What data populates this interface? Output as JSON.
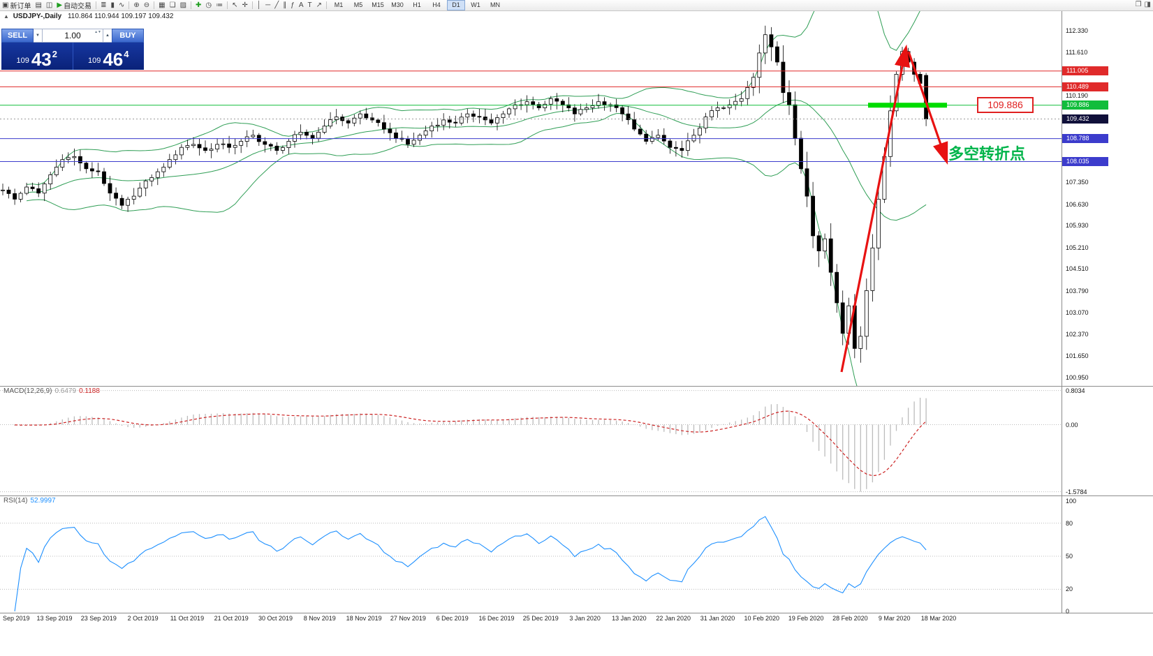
{
  "toolbar": {
    "timeframes": [
      "M1",
      "M5",
      "M15",
      "M30",
      "H1",
      "H4",
      "D1",
      "W1",
      "MN"
    ],
    "active_timeframe": "D1",
    "tool_groups": [
      [
        {
          "n": "new-order-button",
          "g": "▣",
          "l": "新订单"
        },
        {
          "n": "charts-icon",
          "g": "▤"
        },
        {
          "n": "layout-icon",
          "g": "◫"
        },
        {
          "n": "auto-trading-button",
          "g": "▶",
          "gc": "#1f9e1f",
          "l": "自动交易"
        }
      ],
      [
        {
          "n": "ohlc-bars-icon",
          "g": "≣"
        },
        {
          "n": "candlestick-icon",
          "g": "▮"
        },
        {
          "n": "line-chart-icon",
          "g": "∿"
        }
      ],
      [
        {
          "n": "zoom-in-icon",
          "g": "⊕"
        },
        {
          "n": "zoom-out-icon",
          "g": "⊖"
        }
      ],
      [
        {
          "n": "tile-windows-icon",
          "g": "▦"
        },
        {
          "n": "cascade-windows-icon",
          "g": "❏"
        },
        {
          "n": "profiles-icon",
          "g": "▨"
        }
      ],
      [
        {
          "n": "add-indicator-icon",
          "g": "✚",
          "gc": "#1f9e1f"
        },
        {
          "n": "period-icon",
          "g": "◷"
        },
        {
          "n": "templates-icon",
          "g": "≔"
        }
      ],
      [
        {
          "n": "cursor-icon",
          "g": "↖"
        },
        {
          "n": "crosshair-icon",
          "g": "✛"
        }
      ],
      [
        {
          "n": "vertical-line-icon",
          "g": "│"
        },
        {
          "n": "horizontal-line-icon",
          "g": "─"
        },
        {
          "n": "trendline-icon",
          "g": "╱"
        },
        {
          "n": "channel-icon",
          "g": "∥"
        },
        {
          "n": "fibonacci-icon",
          "g": "ƒ"
        },
        {
          "n": "text-icon",
          "g": "A"
        },
        {
          "n": "label-icon",
          "g": "T"
        },
        {
          "n": "arrows-icon",
          "g": "↗"
        }
      ]
    ],
    "right_icons": [
      {
        "n": "restore-window-icon",
        "g": "❐"
      },
      {
        "n": "panel-toggle-icon",
        "g": "◨"
      }
    ]
  },
  "chart_header": {
    "collapse_icon": "▲",
    "symbol": "USDJPY-,Daily",
    "ohlc": "110.864 110.944 109.197 109.432"
  },
  "trade_panel": {
    "sell_label": "SELL",
    "buy_label": "BUY",
    "volume": "1.00",
    "dec_icon": "▼",
    "inc_icon": "▲",
    "spin_icon": "▲▼",
    "sell_small": "109",
    "sell_big": "43",
    "sell_sup": "2",
    "buy_small": "109",
    "buy_big": "46",
    "buy_sup": "4"
  },
  "price_axis_labels": [
    "112.330",
    "111.610",
    "110.190",
    "107.350",
    "106.630",
    "105.930",
    "105.210",
    "104.510",
    "103.790",
    "103.070",
    "102.370",
    "101.650",
    "100.950"
  ],
  "levels": [
    {
      "price": "111.005",
      "color": "#e02a2a",
      "style": "solid"
    },
    {
      "price": "110.489",
      "color": "#e02a2a",
      "style": "solid"
    },
    {
      "price": "109.886",
      "color": "#11bd3c",
      "style": "solid"
    },
    {
      "price": "109.432",
      "color": "#10103a",
      "style": "dotted"
    },
    {
      "price": "108.788",
      "color": "#3c3ccc",
      "style": "solid"
    },
    {
      "price": "108.035",
      "color": "#3c3ccc",
      "style": "solid"
    }
  ],
  "annotations": {
    "price_box": "109.886",
    "turning_text": "多空转折点",
    "highlight_color": "#00dc00",
    "arrow_color": "#e81212",
    "band_color": "#2f9e55"
  },
  "macd": {
    "label": "MACD(12,26,9)",
    "value_main": "0.6479",
    "value_signal": "0.1188",
    "axis": [
      "0.8034",
      "0.00",
      "-1.5784"
    ]
  },
  "rsi": {
    "label": "RSI(14)",
    "value": "52.9997",
    "axis": [
      "100",
      "80",
      "50",
      "20",
      "0"
    ]
  },
  "dates": [
    "Sep 2019",
    "13 Sep 2019",
    "23 Sep 2019",
    "2 Oct 2019",
    "11 Oct 2019",
    "21 Oct 2019",
    "30 Oct 2019",
    "8 Nov 2019",
    "18 Nov 2019",
    "27 Nov 2019",
    "6 Dec 2019",
    "16 Dec 2019",
    "25 Dec 2019",
    "3 Jan 2020",
    "13 Jan 2020",
    "22 Jan 2020",
    "31 Jan 2020",
    "10 Feb 2020",
    "19 Feb 2020",
    "28 Feb 2020",
    "9 Mar 2020",
    "18 Mar 2020"
  ],
  "chart_data": {
    "type": "candlestick",
    "symbol": "USDJPY",
    "timeframe": "D1",
    "bar_count": 156,
    "price_range_visible": [
      100.68,
      112.97
    ],
    "current_bar": {
      "open": 110.864,
      "high": 110.944,
      "low": 109.197,
      "close": 109.432
    },
    "close_anchors": [
      [
        0,
        107.1
      ],
      [
        2,
        106.8
      ],
      [
        4,
        107.2
      ],
      [
        6,
        107.0
      ],
      [
        8,
        107.6
      ],
      [
        10,
        108.1
      ],
      [
        12,
        108.2
      ],
      [
        14,
        107.8
      ],
      [
        16,
        107.7
      ],
      [
        18,
        107.0
      ],
      [
        20,
        106.6
      ],
      [
        22,
        106.9
      ],
      [
        24,
        107.4
      ],
      [
        26,
        107.7
      ],
      [
        28,
        108.1
      ],
      [
        30,
        108.5
      ],
      [
        32,
        108.6
      ],
      [
        34,
        108.4
      ],
      [
        36,
        108.6
      ],
      [
        38,
        108.5
      ],
      [
        40,
        108.7
      ],
      [
        42,
        108.9
      ],
      [
        44,
        108.6
      ],
      [
        46,
        108.4
      ],
      [
        48,
        108.7
      ],
      [
        50,
        109.0
      ],
      [
        52,
        108.8
      ],
      [
        54,
        109.2
      ],
      [
        56,
        109.5
      ],
      [
        58,
        109.3
      ],
      [
        60,
        109.6
      ],
      [
        62,
        109.4
      ],
      [
        64,
        109.1
      ],
      [
        66,
        108.8
      ],
      [
        68,
        108.6
      ],
      [
        70,
        108.9
      ],
      [
        72,
        109.2
      ],
      [
        74,
        109.4
      ],
      [
        76,
        109.3
      ],
      [
        78,
        109.6
      ],
      [
        80,
        109.5
      ],
      [
        82,
        109.3
      ],
      [
        84,
        109.6
      ],
      [
        86,
        109.9
      ],
      [
        88,
        110.0
      ],
      [
        90,
        109.8
      ],
      [
        92,
        110.1
      ],
      [
        94,
        109.9
      ],
      [
        96,
        109.6
      ],
      [
        98,
        109.8
      ],
      [
        100,
        110.0
      ],
      [
        102,
        109.9
      ],
      [
        104,
        109.6
      ],
      [
        106,
        109.1
      ],
      [
        108,
        108.7
      ],
      [
        110,
        108.9
      ],
      [
        112,
        108.5
      ],
      [
        114,
        108.4
      ],
      [
        116,
        108.9
      ],
      [
        118,
        109.5
      ],
      [
        120,
        109.8
      ],
      [
        122,
        109.9
      ],
      [
        124,
        110.1
      ],
      [
        126,
        110.8
      ],
      [
        127,
        111.6
      ],
      [
        128,
        112.2
      ],
      [
        129,
        111.8
      ],
      [
        130,
        111.3
      ],
      [
        131,
        110.3
      ],
      [
        132,
        109.9
      ],
      [
        133,
        108.8
      ],
      [
        134,
        107.8
      ],
      [
        135,
        106.9
      ],
      [
        136,
        105.6
      ],
      [
        137,
        105.1
      ],
      [
        138,
        105.5
      ],
      [
        139,
        104.4
      ],
      [
        140,
        103.4
      ],
      [
        141,
        102.4
      ],
      [
        142,
        103.3
      ],
      [
        143,
        101.9
      ],
      [
        144,
        102.3
      ],
      [
        145,
        103.8
      ],
      [
        146,
        105.2
      ],
      [
        147,
        106.8
      ],
      [
        148,
        108.2
      ],
      [
        149,
        109.7
      ],
      [
        150,
        110.9
      ],
      [
        151,
        111.65
      ],
      [
        152,
        111.3
      ],
      [
        153,
        110.9
      ],
      [
        154,
        110.6
      ],
      [
        155,
        109.43
      ]
    ],
    "indicators": {
      "bollinger_period": 20,
      "bollinger_dev": 2,
      "macd": [
        12,
        26,
        9
      ],
      "rsi_period": 14
    }
  }
}
